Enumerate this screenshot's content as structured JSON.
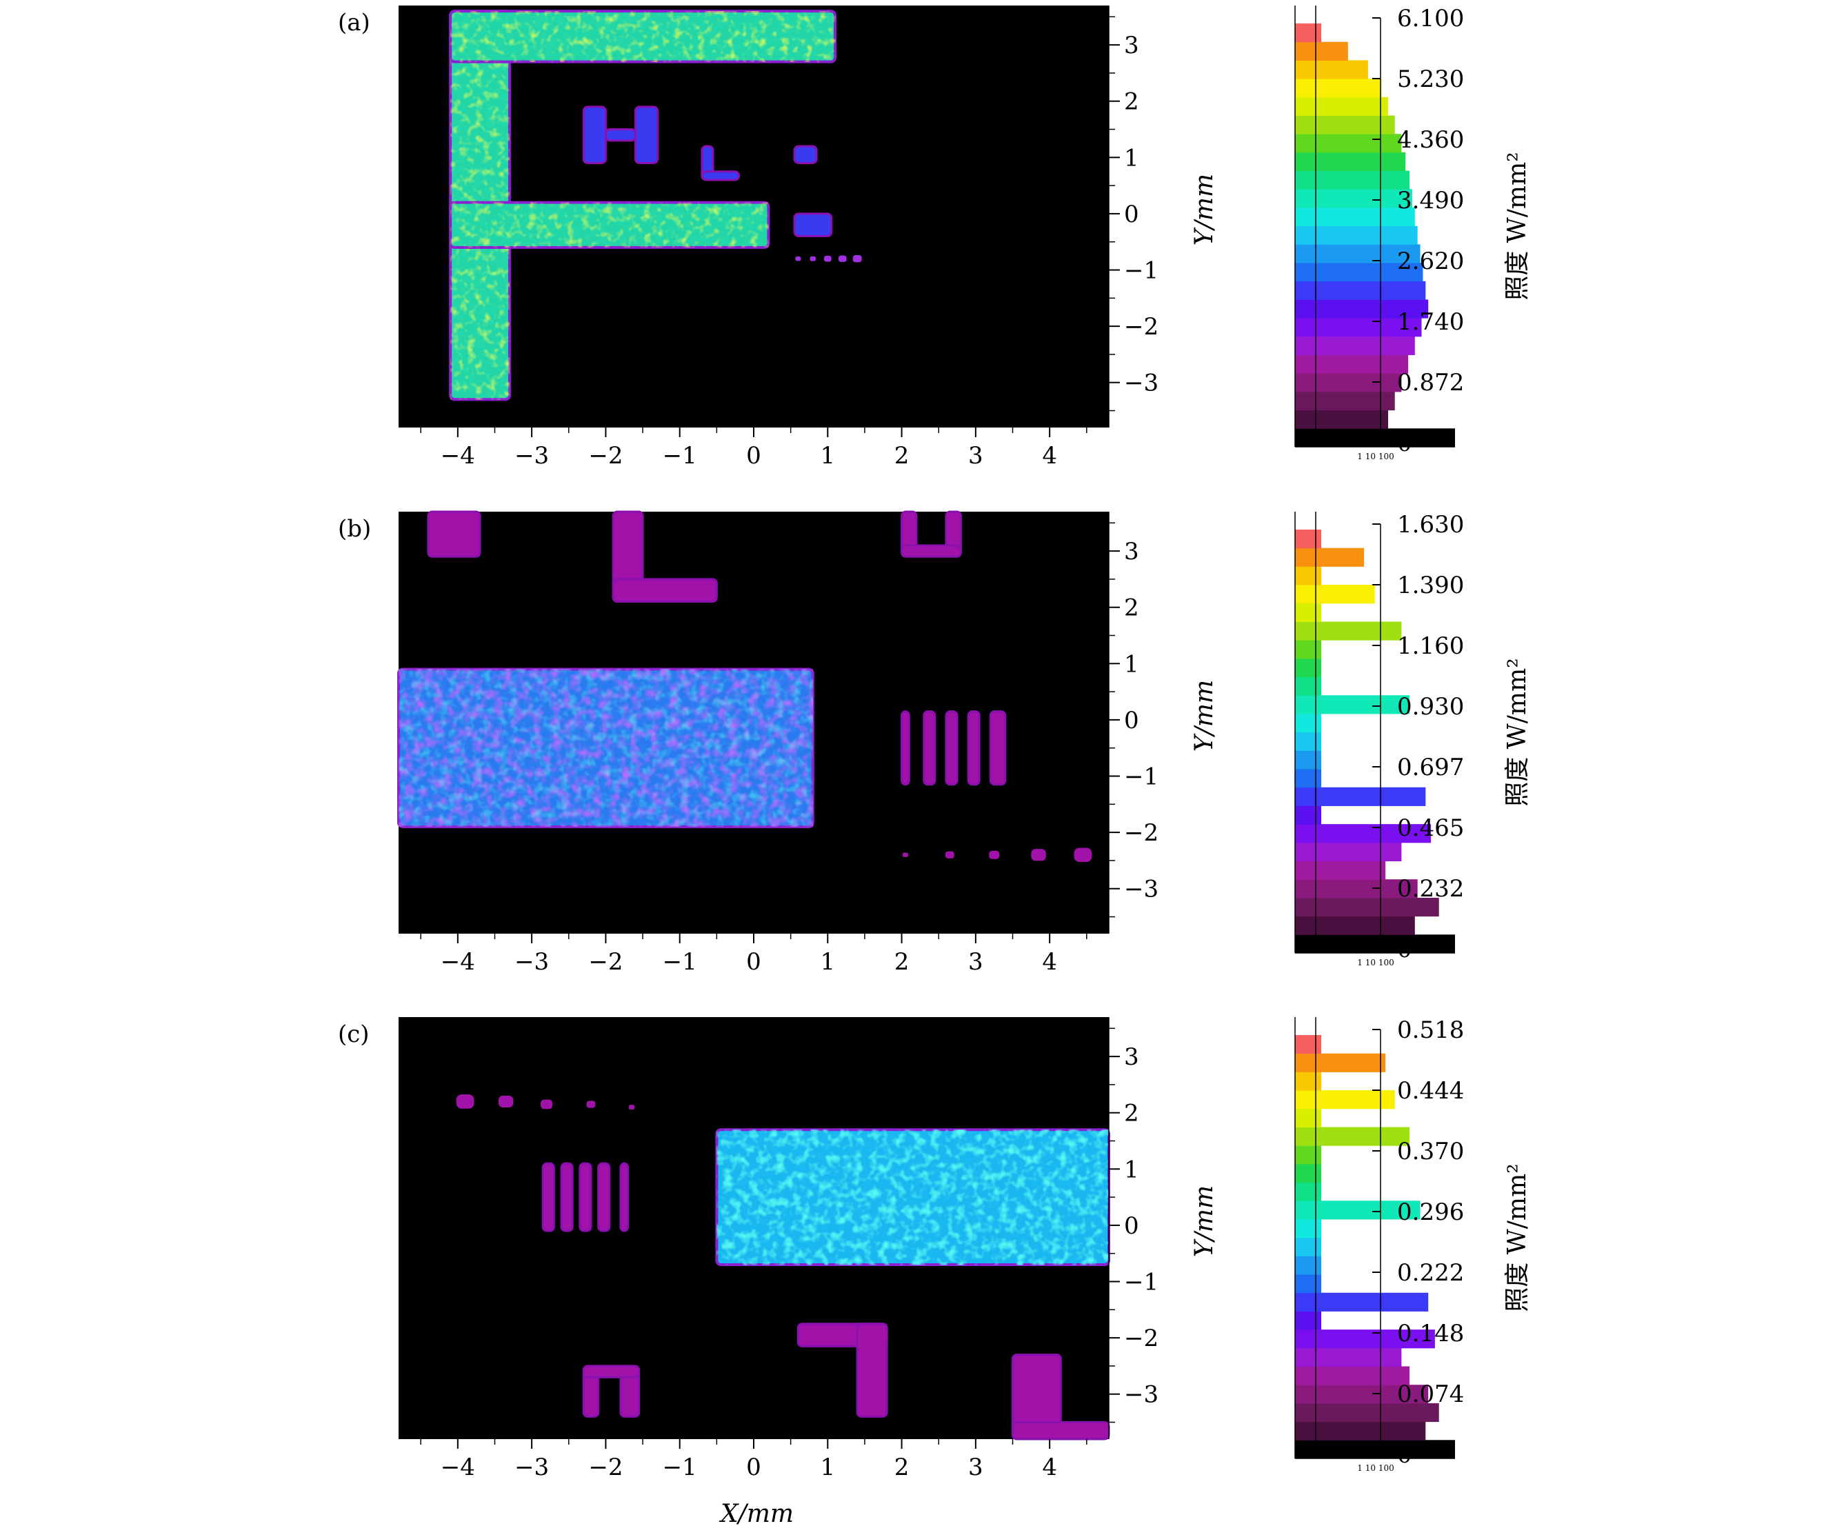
{
  "figure": {
    "x_axis_label": "X/mm",
    "y_axis_label": "Y/mm",
    "colorbar_label": "照度 W/mm²",
    "histogram_ticks": "1 10 100"
  },
  "chart_data": [
    {
      "type": "heatmap",
      "panel_label": "(a)",
      "xlabel": "",
      "ylabel": "Y/mm",
      "xlim": [
        -4.8,
        4.8
      ],
      "ylim": [
        -3.8,
        3.7
      ],
      "x_ticks": [
        "−4",
        "−3",
        "−2",
        "−1",
        "0",
        "1",
        "2",
        "3",
        "4"
      ],
      "x_tick_values": [
        -4,
        -3,
        -2,
        -1,
        0,
        1,
        2,
        3,
        4
      ],
      "y_ticks": [
        "3",
        "2",
        "1",
        "0",
        "−1",
        "−2",
        "−3"
      ],
      "y_tick_values": [
        3,
        2,
        1,
        0,
        -1,
        -2,
        -3
      ],
      "colorbar": {
        "label": "照度 W/mm²",
        "ticks": [
          "6.100",
          "5.230",
          "4.360",
          "3.490",
          "2.620",
          "1.740",
          "0.872",
          "0"
        ],
        "range": [
          0,
          6.1
        ],
        "histogram_scale": "log",
        "histogram_ticks": "1 10 100",
        "bin_colors": [
          "#000000",
          "#4a1040",
          "#6a1a5c",
          "#8a1a7e",
          "#a01aa0",
          "#9a1ad4",
          "#7a10f0",
          "#5a10f0",
          "#3a3af8",
          "#1e6ef4",
          "#1a9af0",
          "#18c8f0",
          "#10e8e0",
          "#10e8b8",
          "#10e088",
          "#20d850",
          "#60d820",
          "#a0e010",
          "#d8f000",
          "#f8f000",
          "#f8c800",
          "#f89010",
          "#f86060"
        ],
        "histogram_lengths": [
          1.0,
          0.5,
          0.55,
          0.6,
          0.65,
          0.7,
          0.75,
          0.8,
          0.78,
          0.76,
          0.74,
          0.72,
          0.7,
          0.68,
          0.66,
          0.63,
          0.6,
          0.55,
          0.5,
          0.45,
          0.35,
          0.2,
          0.0
        ]
      },
      "features": [
        {
          "kind": "rect",
          "x0": -4.1,
          "x1": -3.3,
          "y0": -3.3,
          "y1": 3.6,
          "level": "high"
        },
        {
          "kind": "rect",
          "x0": -4.1,
          "x1": 1.1,
          "y0": 2.7,
          "y1": 3.6,
          "level": "high"
        },
        {
          "kind": "rect",
          "x0": -4.1,
          "x1": 0.2,
          "y0": -0.6,
          "y1": 0.2,
          "level": "high"
        },
        {
          "kind": "rect",
          "x0": -2.3,
          "x1": -2.0,
          "y0": 0.9,
          "y1": 1.9,
          "level": "low"
        },
        {
          "kind": "rect",
          "x0": -1.6,
          "x1": -1.3,
          "y0": 0.9,
          "y1": 1.9,
          "level": "low"
        },
        {
          "kind": "rect",
          "x0": -2.0,
          "x1": -1.6,
          "y0": 1.3,
          "y1": 1.5,
          "level": "low"
        },
        {
          "kind": "rect",
          "x0": -0.7,
          "x1": -0.55,
          "y0": 0.6,
          "y1": 1.2,
          "level": "low"
        },
        {
          "kind": "rect",
          "x0": -0.7,
          "x1": -0.2,
          "y0": 0.6,
          "y1": 0.75,
          "level": "low"
        },
        {
          "kind": "rect",
          "x0": 0.55,
          "x1": 0.85,
          "y0": 0.9,
          "y1": 1.2,
          "level": "low"
        },
        {
          "kind": "rect",
          "x0": 0.55,
          "x1": 1.05,
          "y0": -0.4,
          "y1": 0.0,
          "level": "low"
        },
        {
          "kind": "dot",
          "x": 0.6,
          "y": -0.8,
          "r": 0.03
        },
        {
          "kind": "dot",
          "x": 0.8,
          "y": -0.8,
          "r": 0.04
        },
        {
          "kind": "dot",
          "x": 1.0,
          "y": -0.8,
          "r": 0.05
        },
        {
          "kind": "dot",
          "x": 1.2,
          "y": -0.8,
          "r": 0.055
        },
        {
          "kind": "dot",
          "x": 1.4,
          "y": -0.8,
          "r": 0.06
        }
      ]
    },
    {
      "type": "heatmap",
      "panel_label": "(b)",
      "xlabel": "",
      "ylabel": "Y/mm",
      "xlim": [
        -4.8,
        4.8
      ],
      "ylim": [
        -3.8,
        3.7
      ],
      "x_ticks": [
        "−4",
        "−3",
        "−2",
        "−1",
        "0",
        "1",
        "2",
        "3",
        "4"
      ],
      "x_tick_values": [
        -4,
        -3,
        -2,
        -1,
        0,
        1,
        2,
        3,
        4
      ],
      "y_ticks": [
        "3",
        "2",
        "1",
        "0",
        "−1",
        "−2",
        "−3"
      ],
      "y_tick_values": [
        3,
        2,
        1,
        0,
        -1,
        -2,
        -3
      ],
      "colorbar": {
        "label": "照度 W/mm²",
        "ticks": [
          "1.630",
          "1.390",
          "1.160",
          "0.930",
          "0.697",
          "0.465",
          "0.232",
          "0"
        ],
        "range": [
          0,
          1.63
        ],
        "histogram_scale": "log",
        "histogram_ticks": "1 10 100",
        "bin_colors": [
          "#000000",
          "#4a1040",
          "#6a1a5c",
          "#8a1a7e",
          "#a01aa0",
          "#9a1ad4",
          "#7a10f0",
          "#5a10f0",
          "#3a3af8",
          "#1e6ef4",
          "#1a9af0",
          "#18c8f0",
          "#10e8e0",
          "#10e8b8",
          "#10e088",
          "#20d850",
          "#60d820",
          "#a0e010",
          "#d8f000",
          "#f8f000",
          "#f8c800",
          "#f89010",
          "#f86060"
        ],
        "histogram_lengths": [
          1.0,
          0.7,
          0.88,
          0.72,
          0.48,
          0.6,
          0.82,
          0.0,
          0.78,
          0.0,
          0.0,
          0.0,
          0.0,
          0.66,
          0.0,
          0.0,
          0.0,
          0.6,
          0.0,
          0.4,
          0.0,
          0.32,
          0.0
        ]
      },
      "features": [
        {
          "kind": "rect",
          "x0": -4.8,
          "x1": 0.8,
          "y0": -1.9,
          "y1": 0.9,
          "level": "high"
        },
        {
          "kind": "rect",
          "x0": -4.4,
          "x1": -3.7,
          "y0": 2.9,
          "y1": 3.7,
          "level": "low"
        },
        {
          "kind": "rect",
          "x0": -1.9,
          "x1": -1.5,
          "y0": 2.1,
          "y1": 3.7,
          "level": "low"
        },
        {
          "kind": "rect",
          "x0": -1.9,
          "x1": -0.5,
          "y0": 2.1,
          "y1": 2.5,
          "level": "low"
        },
        {
          "kind": "rect",
          "x0": 2.0,
          "x1": 2.2,
          "y0": 3.0,
          "y1": 3.7,
          "level": "low"
        },
        {
          "kind": "rect",
          "x0": 2.6,
          "x1": 2.8,
          "y0": 3.0,
          "y1": 3.7,
          "level": "low"
        },
        {
          "kind": "rect",
          "x0": 2.0,
          "x1": 2.8,
          "y0": 2.9,
          "y1": 3.1,
          "level": "low"
        },
        {
          "kind": "rect",
          "x0": 2.0,
          "x1": 2.1,
          "y0": -1.15,
          "y1": 0.15,
          "level": "low"
        },
        {
          "kind": "rect",
          "x0": 2.3,
          "x1": 2.45,
          "y0": -1.15,
          "y1": 0.15,
          "level": "low"
        },
        {
          "kind": "rect",
          "x0": 2.6,
          "x1": 2.75,
          "y0": -1.15,
          "y1": 0.15,
          "level": "low"
        },
        {
          "kind": "rect",
          "x0": 2.9,
          "x1": 3.05,
          "y0": -1.15,
          "y1": 0.15,
          "level": "low"
        },
        {
          "kind": "rect",
          "x0": 3.2,
          "x1": 3.4,
          "y0": -1.15,
          "y1": 0.15,
          "level": "low"
        },
        {
          "kind": "dot",
          "x": 2.05,
          "y": -2.4,
          "r": 0.03
        },
        {
          "kind": "dot",
          "x": 2.65,
          "y": -2.4,
          "r": 0.06
        },
        {
          "kind": "dot",
          "x": 3.25,
          "y": -2.4,
          "r": 0.07
        },
        {
          "kind": "dot",
          "x": 3.85,
          "y": -2.4,
          "r": 0.1
        },
        {
          "kind": "dot",
          "x": 4.45,
          "y": -2.4,
          "r": 0.12
        }
      ]
    },
    {
      "type": "heatmap",
      "panel_label": "(c)",
      "xlabel": "X/mm",
      "ylabel": "Y/mm",
      "xlim": [
        -4.8,
        4.8
      ],
      "ylim": [
        -3.8,
        3.7
      ],
      "x_ticks": [
        "−4",
        "−3",
        "−2",
        "−1",
        "0",
        "1",
        "2",
        "3",
        "4"
      ],
      "x_tick_values": [
        -4,
        -3,
        -2,
        -1,
        0,
        1,
        2,
        3,
        4
      ],
      "y_ticks": [
        "3",
        "2",
        "1",
        "0",
        "−1",
        "−2",
        "−3"
      ],
      "y_tick_values": [
        3,
        2,
        1,
        0,
        -1,
        -2,
        -3
      ],
      "colorbar": {
        "label": "照度 W/mm²",
        "ticks": [
          "0.518",
          "0.444",
          "0.370",
          "0.296",
          "0.222",
          "0.148",
          "0.074",
          "0"
        ],
        "range": [
          0,
          0.518
        ],
        "histogram_scale": "log",
        "histogram_ticks": "1 10 100",
        "bin_colors": [
          "#000000",
          "#4a1040",
          "#6a1a5c",
          "#8a1a7e",
          "#a01aa0",
          "#9a1ad4",
          "#7a10f0",
          "#5a10f0",
          "#3a3af8",
          "#1e6ef4",
          "#1a9af0",
          "#18c8f0",
          "#10e8e0",
          "#10e8b8",
          "#10e088",
          "#20d850",
          "#60d820",
          "#a0e010",
          "#d8f000",
          "#f8f000",
          "#f8c800",
          "#f89010",
          "#f86060"
        ],
        "histogram_lengths": [
          1.0,
          0.78,
          0.88,
          0.8,
          0.66,
          0.6,
          0.85,
          0.0,
          0.8,
          0.0,
          0.0,
          0.0,
          0.0,
          0.74,
          0.0,
          0.0,
          0.0,
          0.66,
          0.0,
          0.55,
          0.0,
          0.48,
          0.0
        ]
      },
      "features": [
        {
          "kind": "rect",
          "x0": -0.5,
          "x1": 4.8,
          "y0": -0.7,
          "y1": 1.7,
          "level": "high"
        },
        {
          "kind": "rect",
          "x0": 3.5,
          "x1": 4.15,
          "y0": -3.8,
          "y1": -2.3,
          "level": "low"
        },
        {
          "kind": "rect",
          "x0": 3.5,
          "x1": 4.8,
          "y0": -3.8,
          "y1": -3.5,
          "level": "low"
        },
        {
          "kind": "rect",
          "x0": 0.6,
          "x1": 1.8,
          "y0": -2.15,
          "y1": -1.75,
          "level": "low"
        },
        {
          "kind": "rect",
          "x0": 1.4,
          "x1": 1.8,
          "y0": -3.4,
          "y1": -1.75,
          "level": "low"
        },
        {
          "kind": "rect",
          "x0": -2.3,
          "x1": -2.1,
          "y0": -3.4,
          "y1": -2.6,
          "level": "low"
        },
        {
          "kind": "rect",
          "x0": -1.8,
          "x1": -1.55,
          "y0": -3.4,
          "y1": -2.6,
          "level": "low"
        },
        {
          "kind": "rect",
          "x0": -2.3,
          "x1": -1.55,
          "y0": -2.7,
          "y1": -2.5,
          "level": "low"
        },
        {
          "kind": "rect",
          "x0": -2.85,
          "x1": -2.7,
          "y0": -0.1,
          "y1": 1.1,
          "level": "low"
        },
        {
          "kind": "rect",
          "x0": -2.6,
          "x1": -2.45,
          "y0": -0.1,
          "y1": 1.1,
          "level": "low"
        },
        {
          "kind": "rect",
          "x0": -2.35,
          "x1": -2.2,
          "y0": -0.1,
          "y1": 1.1,
          "level": "low"
        },
        {
          "kind": "rect",
          "x0": -2.1,
          "x1": -1.95,
          "y0": -0.1,
          "y1": 1.1,
          "level": "low"
        },
        {
          "kind": "rect",
          "x0": -1.8,
          "x1": -1.7,
          "y0": -0.1,
          "y1": 1.1,
          "level": "low"
        },
        {
          "kind": "dot",
          "x": -3.9,
          "y": 2.2,
          "r": 0.12
        },
        {
          "kind": "dot",
          "x": -3.35,
          "y": 2.2,
          "r": 0.1
        },
        {
          "kind": "dot",
          "x": -2.8,
          "y": 2.15,
          "r": 0.08
        },
        {
          "kind": "dot",
          "x": -2.2,
          "y": 2.15,
          "r": 0.06
        },
        {
          "kind": "dot",
          "x": -1.65,
          "y": 2.1,
          "r": 0.04
        }
      ]
    }
  ]
}
